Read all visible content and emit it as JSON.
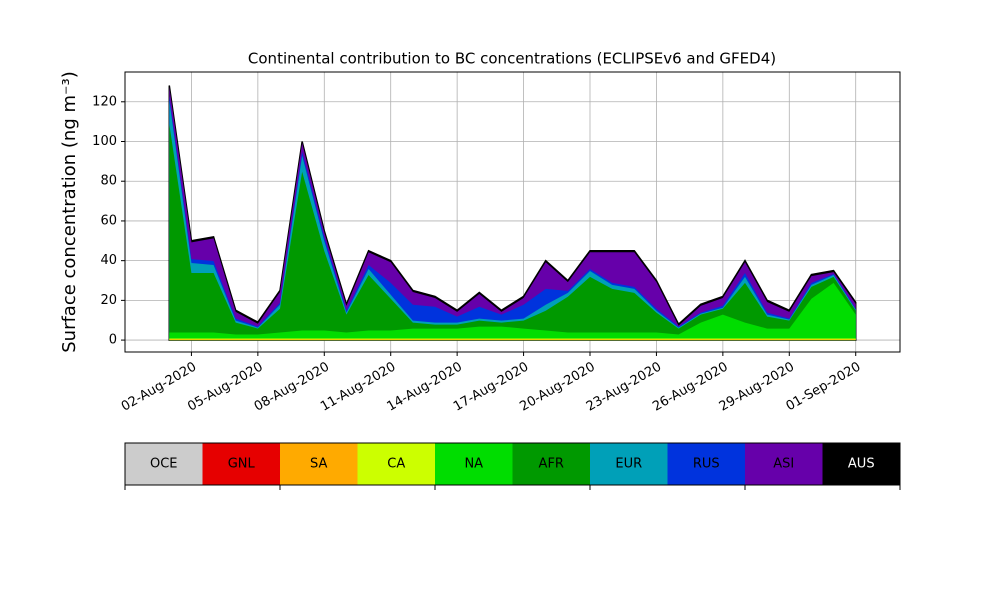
{
  "chart_data": {
    "type": "stacked-area",
    "title": "Continental contribution to BC concentrations (ECLIPSEv6 and GFED4)",
    "y_label": "Surface concentration (ng m⁻³)",
    "x": [
      "2020-08-01",
      "2020-08-02",
      "2020-08-03",
      "2020-08-04",
      "2020-08-05",
      "2020-08-06",
      "2020-08-07",
      "2020-08-08",
      "2020-08-09",
      "2020-08-10",
      "2020-08-11",
      "2020-08-12",
      "2020-08-13",
      "2020-08-14",
      "2020-08-15",
      "2020-08-16",
      "2020-08-17",
      "2020-08-18",
      "2020-08-19",
      "2020-08-20",
      "2020-08-21",
      "2020-08-22",
      "2020-08-23",
      "2020-08-24",
      "2020-08-25",
      "2020-08-26",
      "2020-08-27",
      "2020-08-28",
      "2020-08-29",
      "2020-08-30",
      "2020-08-31",
      "2020-09-01"
    ],
    "series": [
      {
        "name": "OCE",
        "color": "#cccccc",
        "values": [
          0,
          0,
          0,
          0,
          0,
          0,
          0,
          0,
          0,
          0,
          0,
          0,
          0,
          0,
          0,
          0,
          0,
          0,
          0,
          0,
          0,
          0,
          0,
          0,
          0,
          0,
          0,
          0,
          0,
          0,
          0,
          0
        ]
      },
      {
        "name": "GNL",
        "color": "#e60000",
        "values": [
          0,
          0,
          0,
          0,
          0,
          0,
          0,
          0,
          0,
          0,
          0,
          0,
          0,
          0,
          0,
          0,
          0,
          0,
          0,
          0,
          0,
          0,
          0,
          0,
          0,
          0,
          0,
          0,
          0,
          0,
          0,
          0
        ]
      },
      {
        "name": "SA",
        "color": "#ffaa00",
        "values": [
          0.3,
          0.3,
          0.3,
          0.3,
          0.3,
          0.3,
          0.3,
          0.3,
          0.3,
          0.3,
          0.3,
          0.3,
          0.3,
          0.3,
          0.3,
          0.3,
          0.3,
          0.3,
          0.3,
          0.3,
          0.3,
          0.3,
          0.3,
          0.3,
          0.3,
          0.3,
          0.3,
          0.3,
          0.3,
          0.3,
          0.3,
          0.3
        ]
      },
      {
        "name": "CA",
        "color": "#ccff00",
        "values": [
          0.5,
          0.5,
          0.5,
          0.5,
          0.5,
          0.5,
          0.5,
          0.5,
          0.5,
          0.5,
          0.5,
          0.5,
          0.5,
          0.5,
          0.5,
          0.5,
          0.5,
          0.5,
          0.5,
          0.5,
          0.5,
          0.5,
          0.5,
          0.5,
          0.5,
          0.5,
          0.5,
          0.5,
          0.5,
          0.5,
          0.5,
          0.5
        ]
      },
      {
        "name": "NA",
        "color": "#00dd00",
        "values": [
          3,
          3,
          3,
          2,
          2,
          3,
          4,
          4,
          3,
          4,
          4,
          5,
          5,
          5,
          6,
          6,
          5,
          4,
          3,
          3,
          3,
          3,
          3,
          2,
          8,
          12,
          8,
          5,
          5,
          20,
          28,
          12
        ]
      },
      {
        "name": "AFR",
        "color": "#009900",
        "values": [
          105,
          30,
          30,
          6,
          3,
          12,
          80,
          40,
          9,
          28,
          16,
          3,
          2,
          2,
          3,
          2,
          4,
          10,
          18,
          28,
          22,
          20,
          10,
          3,
          4,
          3,
          20,
          6,
          4,
          6,
          3,
          2
        ]
      },
      {
        "name": "EUR",
        "color": "#00a0b8",
        "values": [
          12,
          5,
          4,
          1,
          0.5,
          2,
          8,
          5,
          1,
          3,
          2,
          1,
          1,
          1,
          1,
          1,
          1,
          3,
          2,
          3,
          2,
          2,
          1,
          0.5,
          0.5,
          0.5,
          3,
          1,
          0.5,
          1,
          1,
          0.5
        ]
      },
      {
        "name": "RUS",
        "color": "#0033dd",
        "values": [
          2,
          2,
          2,
          1,
          0.5,
          1,
          2,
          2,
          1,
          2,
          6,
          8,
          8,
          3,
          6,
          3,
          7,
          8,
          1,
          1,
          1,
          1,
          1,
          0.5,
          0.5,
          1,
          2,
          1,
          0.5,
          1,
          0.5,
          0.5
        ]
      },
      {
        "name": "ASI",
        "color": "#6600aa",
        "values": [
          4.6,
          8.4,
          11.4,
          3.4,
          1.4,
          5.4,
          4.4,
          2.4,
          2.4,
          6.4,
          10.4,
          6.4,
          4.4,
          2.4,
          6.4,
          1.4,
          3.4,
          13.4,
          4.4,
          8.4,
          15.4,
          17.4,
          13.4,
          0.4,
          3.4,
          3.9,
          5.4,
          5.4,
          3.4,
          3.4,
          0.9,
          2.4
        ]
      },
      {
        "name": "AUS",
        "color": "#000000",
        "values": [
          0.8,
          0.8,
          0.8,
          0.8,
          0.8,
          0.8,
          0.8,
          0.8,
          0.8,
          0.8,
          0.8,
          0.8,
          0.8,
          0.8,
          0.8,
          0.8,
          0.8,
          0.8,
          0.8,
          0.8,
          0.8,
          0.8,
          0.8,
          0.8,
          0.8,
          0.8,
          0.8,
          0.8,
          0.8,
          0.8,
          0.8,
          0.8
        ]
      }
    ],
    "xlim": [
      "2020-07-30",
      "2020-09-03"
    ],
    "xticks": [
      {
        "value": "2020-08-02",
        "label": "02-Aug-2020"
      },
      {
        "value": "2020-08-05",
        "label": "05-Aug-2020"
      },
      {
        "value": "2020-08-08",
        "label": "08-Aug-2020"
      },
      {
        "value": "2020-08-11",
        "label": "11-Aug-2020"
      },
      {
        "value": "2020-08-14",
        "label": "14-Aug-2020"
      },
      {
        "value": "2020-08-17",
        "label": "17-Aug-2020"
      },
      {
        "value": "2020-08-20",
        "label": "20-Aug-2020"
      },
      {
        "value": "2020-08-23",
        "label": "23-Aug-2020"
      },
      {
        "value": "2020-08-26",
        "label": "26-Aug-2020"
      },
      {
        "value": "2020-08-29",
        "label": "29-Aug-2020"
      },
      {
        "value": "2020-09-01",
        "label": "01-Sep-2020"
      }
    ],
    "ylim": [
      -6,
      135
    ],
    "yticks": [
      0,
      20,
      40,
      60,
      80,
      100,
      120
    ],
    "grid": true
  }
}
